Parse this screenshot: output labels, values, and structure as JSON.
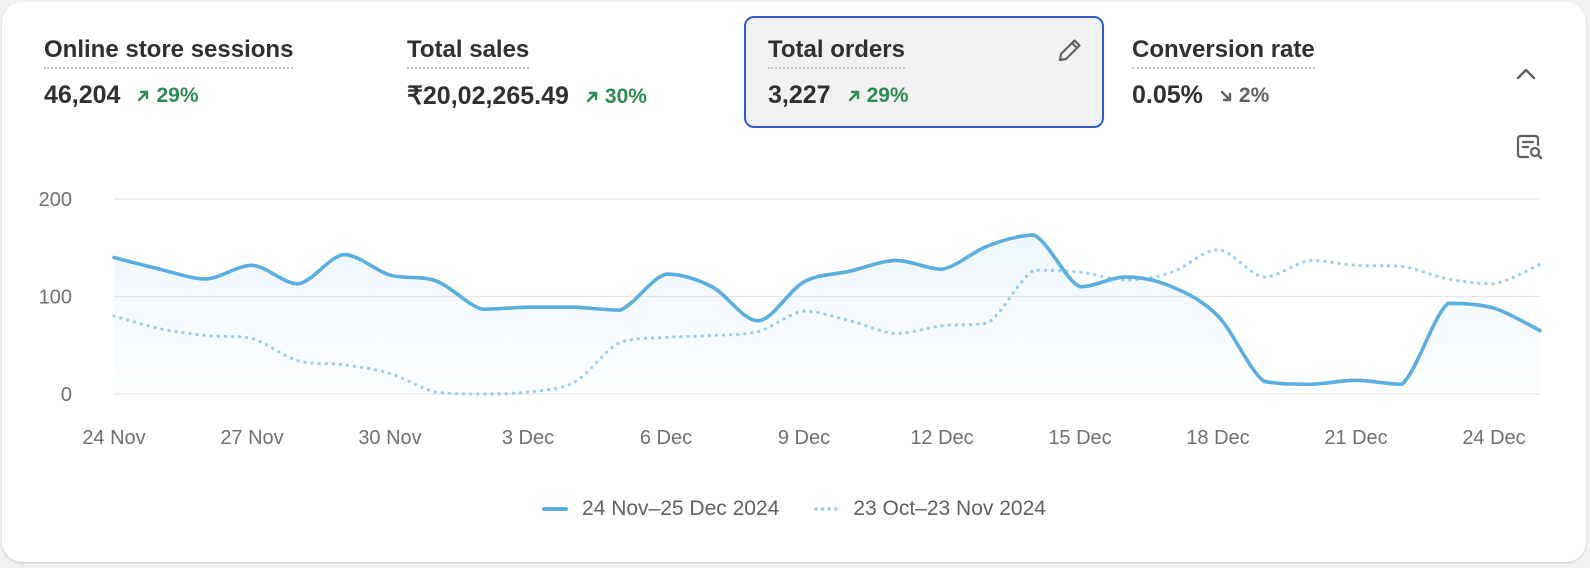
{
  "metrics": [
    {
      "title": "Online store sessions",
      "value": "46,204",
      "change": "29%",
      "direction": "up"
    },
    {
      "title": "Total sales",
      "value": "₹20,02,265.49",
      "change": "30%",
      "direction": "up"
    },
    {
      "title": "Total orders",
      "value": "3,227",
      "change": "29%",
      "direction": "up"
    },
    {
      "title": "Conversion rate",
      "value": "0.05%",
      "change": "2%",
      "direction": "down"
    }
  ],
  "icons": {
    "edit": "pencil-icon",
    "collapse": "chevron-up-icon",
    "explore": "chart-search-icon"
  },
  "colors": {
    "current_series": "#5aaee0",
    "previous_series": "#9ccdec",
    "selected_border": "#2e5fc9",
    "positive": "#2e8a53",
    "neutral": "#616161"
  },
  "chart_data": {
    "type": "line",
    "title": "",
    "xlabel": "",
    "ylabel": "",
    "ylim": [
      0,
      200
    ],
    "yticks": [
      0,
      100,
      200
    ],
    "grid": true,
    "legend_placement": "bottom-center",
    "x_tick_labels": [
      "24 Nov",
      "27 Nov",
      "30 Nov",
      "3 Dec",
      "6 Dec",
      "9 Dec",
      "12 Dec",
      "15 Dec",
      "18 Dec",
      "21 Dec",
      "24 Dec"
    ],
    "x": [
      "24 Nov",
      "25 Nov",
      "26 Nov",
      "27 Nov",
      "28 Nov",
      "29 Nov",
      "30 Nov",
      "1 Dec",
      "2 Dec",
      "3 Dec",
      "4 Dec",
      "5 Dec",
      "6 Dec",
      "7 Dec",
      "8 Dec",
      "9 Dec",
      "10 Dec",
      "11 Dec",
      "12 Dec",
      "13 Dec",
      "14 Dec",
      "15 Dec",
      "16 Dec",
      "17 Dec",
      "18 Dec",
      "19 Dec",
      "20 Dec",
      "21 Dec",
      "22 Dec",
      "23 Dec",
      "24 Dec",
      "25 Dec"
    ],
    "series": [
      {
        "name": "24 Nov–25 Dec 2024",
        "style": "solid",
        "values": [
          140,
          128,
          118,
          132,
          113,
          143,
          122,
          116,
          87,
          89,
          89,
          86,
          123,
          110,
          75,
          115,
          126,
          137,
          128,
          152,
          163,
          110,
          120,
          110,
          80,
          13,
          10,
          14,
          10,
          93,
          88,
          65
        ]
      },
      {
        "name": "23 Oct–23 Nov 2024",
        "style": "dotted",
        "values": [
          80,
          67,
          60,
          57,
          34,
          30,
          21,
          2,
          0,
          2,
          12,
          53,
          58,
          60,
          64,
          85,
          75,
          62,
          70,
          73,
          127,
          125,
          117,
          125,
          148,
          120,
          137,
          132,
          131,
          118,
          113,
          133
        ]
      }
    ]
  }
}
